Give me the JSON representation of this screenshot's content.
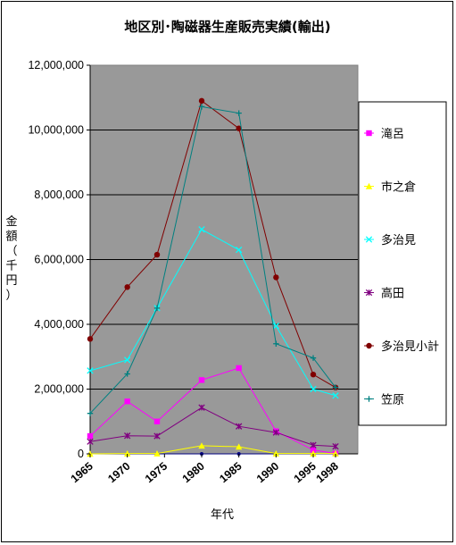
{
  "chart_data": {
    "type": "line",
    "title": "地区別･陶磁器生産販売実績(輸出)",
    "xlabel": "年代",
    "ylabel_chars": [
      "金",
      "額",
      "（",
      "千",
      "円",
      "）"
    ],
    "ylim": [
      0,
      12000000
    ],
    "yticks": [
      "0",
      "2,000,000",
      "4,000,000",
      "6,000,000",
      "8,000,000",
      "10,000,000",
      "12,000,000"
    ],
    "xtick_labels": [
      "1965",
      "1970",
      "1975",
      "1980",
      "1985",
      "1990",
      "1995",
      "1998"
    ],
    "grid": true,
    "legend_position": "right",
    "plot_background": "#999999",
    "x": [
      1965,
      1970,
      1974,
      1980,
      1985,
      1990,
      1995,
      1998
    ],
    "series": [
      {
        "name": "滝呂",
        "color": "#ff00ff",
        "marker": "square",
        "values": [
          550000,
          1620000,
          1000000,
          2280000,
          2650000,
          700000,
          120000,
          10000
        ]
      },
      {
        "name": "市之倉",
        "color": "#ffff00",
        "marker": "triangle",
        "values": [
          0,
          10000,
          10000,
          250000,
          220000,
          10000,
          10000,
          10000
        ]
      },
      {
        "name": "多治見",
        "color": "#00ffff",
        "marker": "cross",
        "values": [
          2570000,
          2900000,
          4500000,
          6930000,
          6300000,
          3950000,
          2000000,
          1800000
        ]
      },
      {
        "name": "高田",
        "color": "#800080",
        "marker": "star",
        "values": [
          380000,
          560000,
          550000,
          1430000,
          850000,
          660000,
          270000,
          230000
        ]
      },
      {
        "name": "多治見小計",
        "color": "#800000",
        "marker": "circle",
        "values": [
          3550000,
          5150000,
          6150000,
          10900000,
          10050000,
          5450000,
          2450000,
          2050000
        ]
      },
      {
        "name": "笠原",
        "color": "#008080",
        "marker": "plus",
        "values": [
          1250000,
          2470000,
          4500000,
          10720000,
          10520000,
          3400000,
          2960000,
          2050000
        ]
      }
    ],
    "baseline_series": {
      "color": "#000080",
      "values": [
        0,
        0,
        0,
        0,
        0,
        0,
        0,
        0
      ]
    }
  }
}
